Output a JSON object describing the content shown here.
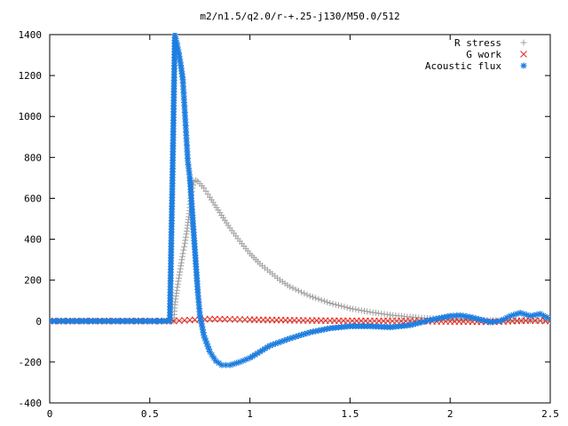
{
  "chart_data": {
    "type": "scatter",
    "title": "m2/n1.5/q2.0/r-+.25-j130/M50.0/512",
    "xlabel": "",
    "ylabel": "",
    "xlim": [
      0,
      2.5
    ],
    "ylim": [
      -400,
      1400
    ],
    "xticks": [
      "0",
      "0.5",
      "1",
      "1.5",
      "2",
      "2.5"
    ],
    "yticks": [
      "-400",
      "-200",
      "0",
      "200",
      "400",
      "600",
      "800",
      "1000",
      "1200",
      "1400"
    ],
    "grid": false,
    "legend_position": "top-right",
    "series": [
      {
        "name": "R stress",
        "marker": "plus",
        "color": "#a0a0a0",
        "points": [
          [
            0,
            0
          ],
          [
            0.1,
            0
          ],
          [
            0.2,
            0
          ],
          [
            0.3,
            0
          ],
          [
            0.4,
            0
          ],
          [
            0.5,
            0
          ],
          [
            0.6,
            0
          ],
          [
            0.62,
            0
          ],
          [
            0.625,
            80
          ],
          [
            0.635,
            150
          ],
          [
            0.645,
            210
          ],
          [
            0.655,
            270
          ],
          [
            0.665,
            330
          ],
          [
            0.675,
            380
          ],
          [
            0.685,
            440
          ],
          [
            0.695,
            510
          ],
          [
            0.705,
            600
          ],
          [
            0.712,
            650
          ],
          [
            0.72,
            680
          ],
          [
            0.73,
            688
          ],
          [
            0.74,
            683
          ],
          [
            0.75,
            672
          ],
          [
            0.77,
            650
          ],
          [
            0.8,
            605
          ],
          [
            0.85,
            530
          ],
          [
            0.9,
            455
          ],
          [
            0.95,
            390
          ],
          [
            1.0,
            330
          ],
          [
            1.05,
            280
          ],
          [
            1.1,
            240
          ],
          [
            1.15,
            200
          ],
          [
            1.2,
            168
          ],
          [
            1.3,
            122
          ],
          [
            1.4,
            88
          ],
          [
            1.5,
            62
          ],
          [
            1.6,
            44
          ],
          [
            1.7,
            30
          ],
          [
            1.8,
            20
          ],
          [
            1.9,
            13
          ],
          [
            2.0,
            9
          ],
          [
            2.1,
            6
          ],
          [
            2.2,
            4
          ],
          [
            2.3,
            3
          ],
          [
            2.4,
            2
          ],
          [
            2.5,
            1
          ]
        ]
      },
      {
        "name": "G work",
        "marker": "cross",
        "color": "#e8281e",
        "points": [
          [
            0,
            0
          ],
          [
            0.5,
            0
          ],
          [
            0.62,
            0
          ],
          [
            0.7,
            5
          ],
          [
            0.8,
            10
          ],
          [
            0.9,
            9
          ],
          [
            1.0,
            7
          ],
          [
            1.2,
            4
          ],
          [
            1.4,
            2
          ],
          [
            1.6,
            1
          ],
          [
            1.8,
            0
          ],
          [
            2.0,
            -2
          ],
          [
            2.2,
            -4
          ],
          [
            2.4,
            3
          ],
          [
            2.5,
            0
          ]
        ]
      },
      {
        "name": "Acoustic flux",
        "marker": "star",
        "color": "#1e7ee0",
        "points": [
          [
            0,
            0
          ],
          [
            0.2,
            0
          ],
          [
            0.4,
            0
          ],
          [
            0.6,
            0
          ],
          [
            0.615,
            800
          ],
          [
            0.625,
            1400
          ],
          [
            0.635,
            1360
          ],
          [
            0.645,
            1310
          ],
          [
            0.655,
            1250
          ],
          [
            0.665,
            1180
          ],
          [
            0.67,
            1100
          ],
          [
            0.675,
            1020
          ],
          [
            0.68,
            940
          ],
          [
            0.685,
            860
          ],
          [
            0.69,
            780
          ],
          [
            0.7,
            700
          ],
          [
            0.71,
            560
          ],
          [
            0.72,
            420
          ],
          [
            0.73,
            280
          ],
          [
            0.74,
            140
          ],
          [
            0.75,
            30
          ],
          [
            0.77,
            -70
          ],
          [
            0.8,
            -150
          ],
          [
            0.83,
            -195
          ],
          [
            0.86,
            -215
          ],
          [
            0.9,
            -215
          ],
          [
            0.95,
            -200
          ],
          [
            1.0,
            -180
          ],
          [
            1.05,
            -150
          ],
          [
            1.1,
            -120
          ],
          [
            1.2,
            -85
          ],
          [
            1.3,
            -55
          ],
          [
            1.4,
            -35
          ],
          [
            1.5,
            -25
          ],
          [
            1.6,
            -25
          ],
          [
            1.7,
            -30
          ],
          [
            1.8,
            -20
          ],
          [
            1.9,
            5
          ],
          [
            2.0,
            25
          ],
          [
            2.05,
            28
          ],
          [
            2.1,
            20
          ],
          [
            2.2,
            -5
          ],
          [
            2.25,
            0
          ],
          [
            2.3,
            25
          ],
          [
            2.35,
            40
          ],
          [
            2.4,
            25
          ],
          [
            2.45,
            35
          ],
          [
            2.5,
            10
          ]
        ]
      }
    ]
  }
}
